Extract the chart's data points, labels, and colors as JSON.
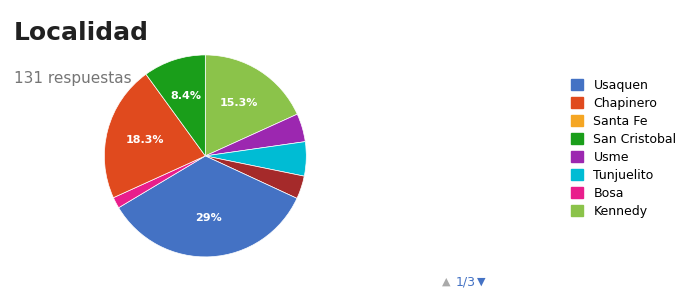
{
  "title": "Localidad",
  "subtitle": "131 respuestas",
  "legend_labels": [
    "Usaquen",
    "Chapinero",
    "Santa Fe",
    "San Cristobal",
    "Usme",
    "Tunjuelito",
    "Bosa",
    "Kennedy"
  ],
  "legend_colors": [
    "#4472c4",
    "#e04a1e",
    "#f5a623",
    "#1a9e1a",
    "#9c27b0",
    "#00bcd4",
    "#e91e8c",
    "#8bc34a"
  ],
  "ordered_labels": [
    "Kennedy",
    "Usme",
    "Tunjuelito",
    "Santa Fe",
    "Usaquen",
    "Bosa",
    "Chapinero",
    "San Cristobal"
  ],
  "ordered_pcts": [
    15.3,
    3.8,
    4.6,
    3.1,
    29.0,
    1.5,
    18.3,
    8.4
  ],
  "ordered_colors": [
    "#8bc34a",
    "#9c27b0",
    "#00bcd4",
    "#a52a2a",
    "#4472c4",
    "#e91e8c",
    "#e04a1e",
    "#1a9e1a"
  ],
  "label_map": {
    "Usaquen": "29%",
    "Chapinero": "18.3%",
    "Kennedy": "15.3%",
    "San Cristobal": "8.4%"
  },
  "background_color": "#ffffff",
  "title_fontsize": 18,
  "subtitle_fontsize": 11,
  "subtitle_color": "#757575"
}
